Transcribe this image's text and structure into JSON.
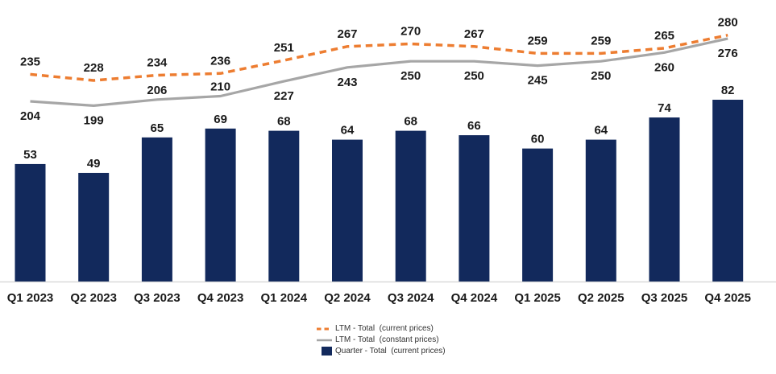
{
  "chart_data": {
    "type": "combo",
    "title": "",
    "categories": [
      "Q1 2023",
      "Q2 2023",
      "Q3 2023",
      "Q4 2023",
      "Q1 2024",
      "Q2 2024",
      "Q3 2024",
      "Q4 2024",
      "Q1 2025",
      "Q2 2025",
      "Q3 2025",
      "Q4 2025"
    ],
    "series": [
      {
        "name": "LTM - Total  (current prices)",
        "type": "line",
        "line_style": "dashed",
        "color": "#ED7D31",
        "label_side": "above",
        "label_side_overrides": {},
        "values": [
          235,
          228,
          234,
          236,
          251,
          267,
          270,
          267,
          259,
          259,
          265,
          280
        ]
      },
      {
        "name": "LTM - Total  (constant prices)",
        "type": "line",
        "line_style": "solid",
        "color": "#A6A6A6",
        "label_side": "below",
        "label_side_overrides": {
          "2": "above",
          "3": "above"
        },
        "values": [
          204,
          199,
          206,
          210,
          227,
          243,
          250,
          250,
          245,
          250,
          260,
          276
        ]
      },
      {
        "name": "Quarter - Total  (current prices)",
        "type": "bar",
        "color": "#12295C",
        "label_side": "above",
        "label_side_overrides": {},
        "values": [
          53,
          49,
          65,
          69,
          68,
          64,
          68,
          66,
          60,
          64,
          74,
          82
        ]
      }
    ],
    "data_labels": true,
    "grid": false,
    "legend_position": "bottom",
    "axis_line_color": "#D9D9D9",
    "label_color": "#1A1A1A"
  }
}
